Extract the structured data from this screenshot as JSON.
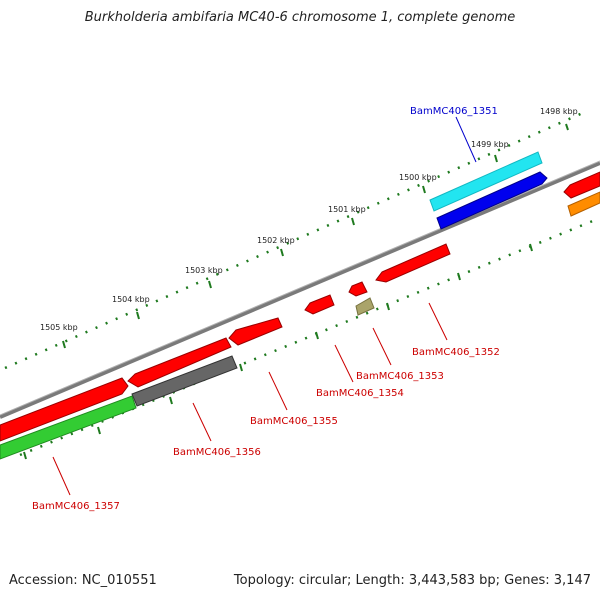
{
  "title": "Burkholderia ambifaria MC40-6 chromosome 1, complete genome",
  "footer": {
    "accession": "Accession: NC_010551",
    "summary": "Topology: circular; Length: 3,443,583 bp; Genes: 3,147"
  },
  "ticks": [
    "1498 kbp",
    "1499 kbp",
    "1500 kbp",
    "1501 kbp",
    "1502 kbp",
    "1503 kbp",
    "1504 kbp",
    "1505 kbp"
  ],
  "genes": [
    {
      "name": "BamMC406_1351",
      "color": "#0000cc"
    },
    {
      "name": "BamMC406_1352",
      "color": "#cc0000"
    },
    {
      "name": "BamMC406_1353",
      "color": "#cc0000"
    },
    {
      "name": "BamMC406_1354",
      "color": "#cc0000"
    },
    {
      "name": "BamMC406_1355",
      "color": "#cc0000"
    },
    {
      "name": "BamMC406_1356",
      "color": "#cc0000"
    },
    {
      "name": "BamMC406_1357",
      "color": "#cc0000"
    }
  ],
  "colors": {
    "backbone": "#808080",
    "tick_track": "#1f7a1f",
    "cds_red": "#ff0000",
    "cds_blue": "#0000ee",
    "cog_cyan": "#22e5f0",
    "cog_grey": "#666666",
    "cog_green": "#33cc33",
    "cog_khaki": "#aaa46a",
    "cog_orange": "#ff8c00"
  }
}
